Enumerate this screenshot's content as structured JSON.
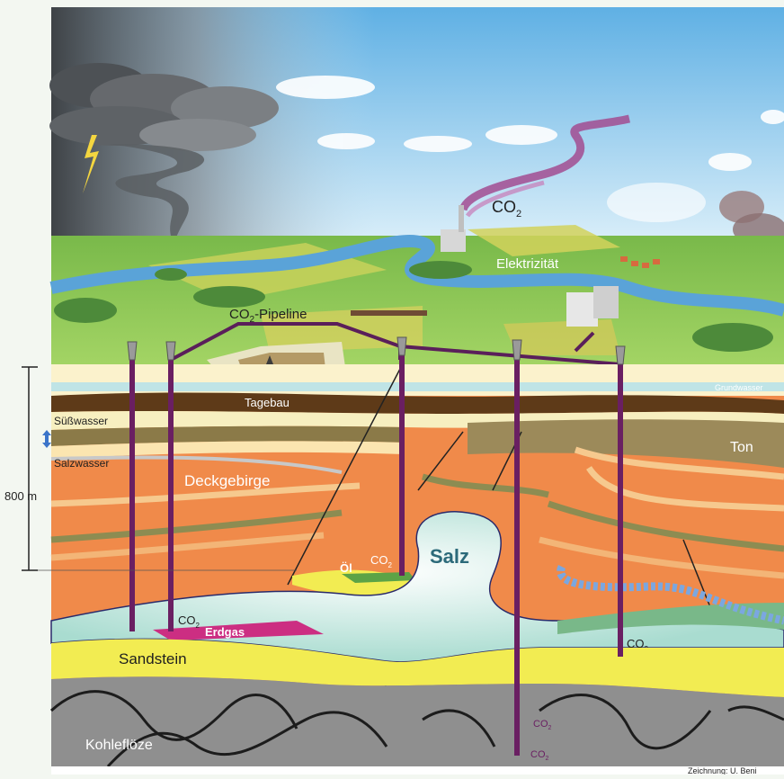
{
  "labels": {
    "co2_sky": "CO",
    "co2_sky_sub": "2",
    "elektrizitaet": "Elektrizität",
    "pipeline": "CO",
    "pipeline_sub": "2",
    "pipeline_rest": "-Pipeline",
    "tagebau": "Tagebau",
    "grundwasser": "Grundwasser",
    "suesswasser": "Süßwasser",
    "salzwasser": "Salzwasser",
    "depth": "800 m",
    "deckgebirge": "Deckgebirge",
    "ton": "Ton",
    "salz": "Salz",
    "oel": "Öl",
    "co2_oel": "CO",
    "co2_oel_sub": "2",
    "co2_erdgas": "CO",
    "co2_erdgas_sub": "2",
    "erdgas": "Erdgas",
    "sandstein": "Sandstein",
    "co2_right": "CO",
    "co2_right_sub": "2",
    "co2_deep1": "CO",
    "co2_deep1_sub": "2",
    "co2_deep2": "CO",
    "co2_deep2_sub": "2",
    "kohlefloeze": "Kohleflöze",
    "credit": "Zeichnung: U. Beni"
  },
  "colors": {
    "sky_top": "#6ab6e6",
    "sky_bottom": "#d8eef8",
    "grass": "#8cc652",
    "sediment": "#f08a4a",
    "co2_pipe": "#6a1f62",
    "sandstone": "#f2ec52",
    "salt": "#bfe6dc",
    "coal": "#8f8f8f",
    "erdgas": "#cc2e82"
  }
}
